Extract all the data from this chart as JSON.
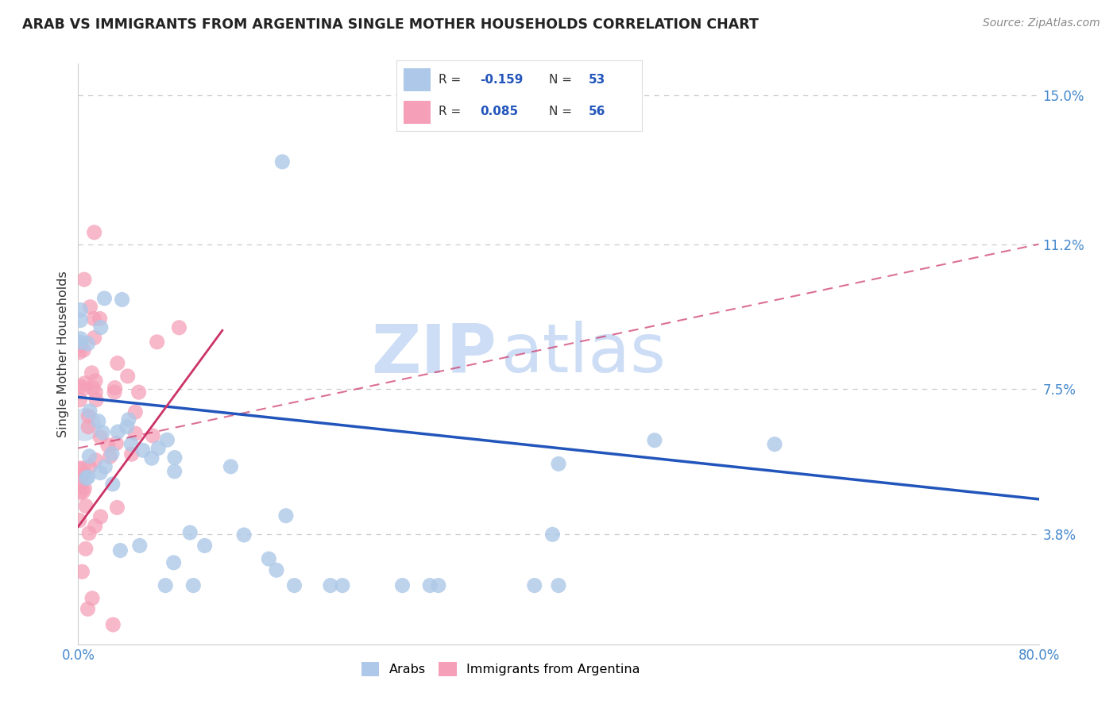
{
  "title": "ARAB VS IMMIGRANTS FROM ARGENTINA SINGLE MOTHER HOUSEHOLDS CORRELATION CHART",
  "source": "Source: ZipAtlas.com",
  "ylabel": "Single Mother Households",
  "xlim": [
    0.0,
    0.8
  ],
  "ylim": [
    0.01,
    0.158
  ],
  "yticks": [
    0.038,
    0.075,
    0.112,
    0.15
  ],
  "ytick_labels": [
    "3.8%",
    "7.5%",
    "11.2%",
    "15.0%"
  ],
  "xtick_positions": [
    0.0,
    0.1,
    0.2,
    0.3,
    0.4,
    0.5,
    0.6,
    0.7,
    0.8
  ],
  "xtick_labels": [
    "0.0%",
    "",
    "",
    "",
    "",
    "",
    "",
    "",
    "80.0%"
  ],
  "arab_color": "#adc8e8",
  "arg_color": "#f5a0b8",
  "arab_line_color": "#2255bb",
  "arg_line_color": "#cc3366",
  "watermark_zip": "ZIP",
  "watermark_atlas": "atlas",
  "watermark_color": "#ccddf5",
  "background_color": "#ffffff",
  "grid_color": "#cccccc",
  "title_color": "#222222",
  "source_color": "#888888",
  "axis_label_color": "#333333",
  "right_tick_color": "#4488cc",
  "legend_border_color": "#dddddd",
  "arab_scatter_seed": 12,
  "arg_scatter_seed": 99,
  "legend_R_arab": "-0.159",
  "legend_N_arab": "53",
  "legend_R_arg": "0.085",
  "legend_N_arg": "56",
  "bottom_legend_arab": "Arabs",
  "bottom_legend_arg": "Immigrants from Argentina"
}
